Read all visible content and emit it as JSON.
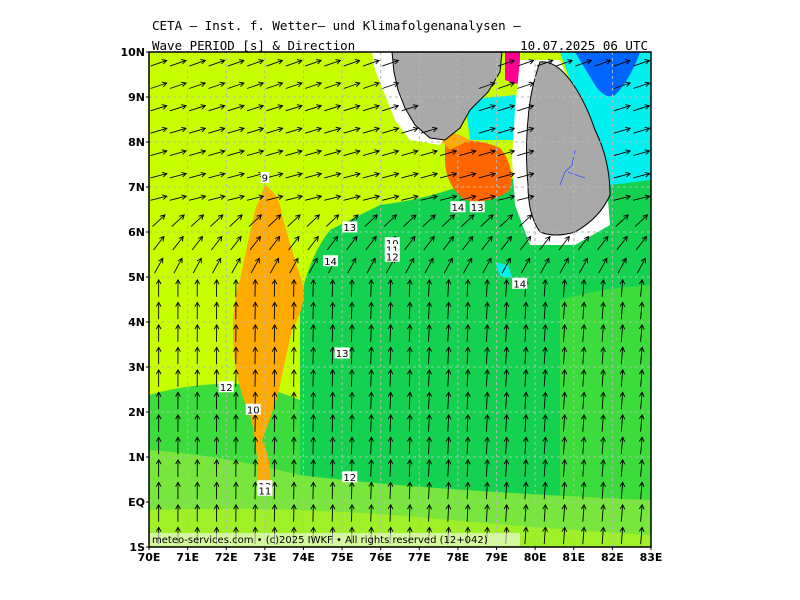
{
  "header": {
    "line1": "CETA – Inst. f. Wetter– und Klimafolgenanalysen –",
    "parameter": "Wave PERIOD [s] & Direction",
    "valid_time": "10.07.2025 06 UTC"
  },
  "map": {
    "lon_range": [
      70,
      83
    ],
    "lat_range": [
      -1,
      10
    ],
    "lat_labels": [
      "1S",
      "EQ",
      "1N",
      "2N",
      "3N",
      "4N",
      "5N",
      "6N",
      "7N",
      "8N",
      "9N",
      "10N"
    ],
    "lon_labels": [
      "70E",
      "71E",
      "72E",
      "73E",
      "74E",
      "75E",
      "76E",
      "77E",
      "78E",
      "79E",
      "80E",
      "81E",
      "82E",
      "83E"
    ],
    "colors": {
      "land": "#a9a9a9",
      "period_9_10": "#c8ff00",
      "period_10_11": "#a0f028",
      "period_11_12": "#78e63c",
      "period_12_13": "#3cdc3c",
      "period_13_14": "#14d250",
      "period_14_15": "#ffaa00",
      "period_15_16": "#ff6600",
      "period_low_cyan": "#00f0f0",
      "period_low_blue": "#0064ff",
      "period_low_magenta": "#ff0090"
    },
    "contour_labels": [
      {
        "text": "9",
        "lon": 73.0,
        "lat": 7.2
      },
      {
        "text": "13",
        "lon": 75.2,
        "lat": 6.1
      },
      {
        "text": "10",
        "lon": 76.3,
        "lat": 5.75
      },
      {
        "text": "11",
        "lon": 76.3,
        "lat": 5.6
      },
      {
        "text": "12",
        "lon": 76.3,
        "lat": 5.45
      },
      {
        "text": "14",
        "lon": 74.7,
        "lat": 5.35
      },
      {
        "text": "14",
        "lon": 78.0,
        "lat": 6.55
      },
      {
        "text": "13",
        "lon": 78.5,
        "lat": 6.55
      },
      {
        "text": "14",
        "lon": 79.6,
        "lat": 4.85
      },
      {
        "text": "13",
        "lon": 75.0,
        "lat": 3.3
      },
      {
        "text": "12",
        "lon": 72.0,
        "lat": 2.55
      },
      {
        "text": "10",
        "lon": 72.7,
        "lat": 2.05
      },
      {
        "text": "12",
        "lon": 75.2,
        "lat": 0.55
      },
      {
        "text": "13",
        "lon": 73.0,
        "lat": 0.35
      },
      {
        "text": "11",
        "lon": 73.0,
        "lat": 0.25
      }
    ],
    "footer": "meteo-services.com • (c)2025 IWKF • All rights reserved (12+042)"
  }
}
